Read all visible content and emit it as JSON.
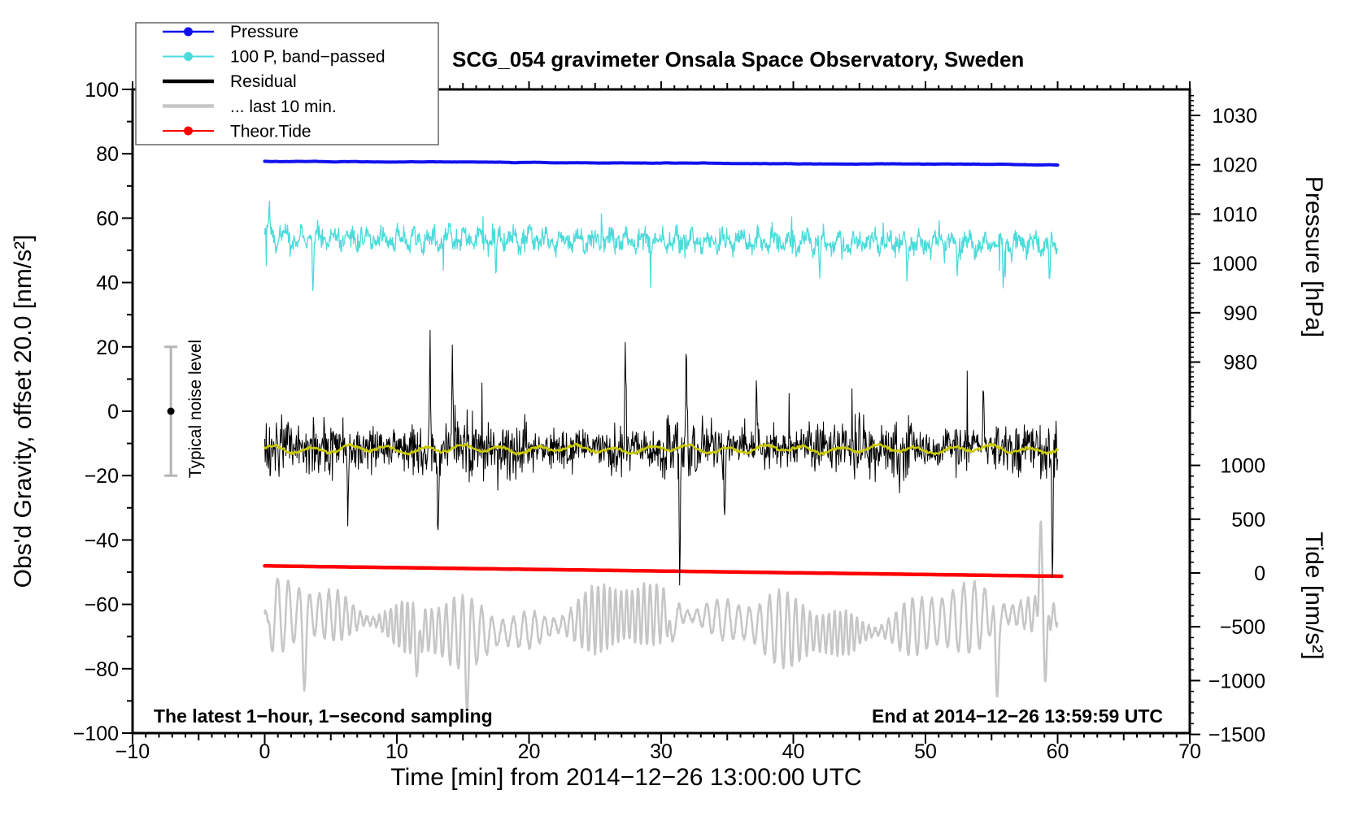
{
  "chart_data": {
    "type": "line",
    "title": "SCG_054 gravimeter Onsala Space Observatory, Sweden",
    "xlabel": "Time [min] from 2014−12−26 13:00:00 UTC",
    "ylabel_left": "Obs'd Gravity, offset 20.0 [nm/s²]",
    "ylabel_right_top": "Pressure [hPa]",
    "ylabel_right_bottom": "Tide [nm/s²]",
    "annotation_left": "The latest 1−hour, 1−second sampling",
    "annotation_right": "End at 2014−12−26 13:59:59 UTC",
    "x_axis": {
      "min": -10,
      "max": 70,
      "major_step": 10,
      "medium_step": 5,
      "minor_step": 1,
      "tick_values": [
        -10,
        0,
        10,
        20,
        30,
        40,
        50,
        60,
        70
      ],
      "tick_labels": [
        "−10",
        "0",
        "10",
        "20",
        "30",
        "40",
        "50",
        "60",
        "70"
      ]
    },
    "y_left_axis": {
      "min": -100,
      "max": 100,
      "major_step": 20,
      "minor_step": 10,
      "tick_values": [
        100,
        80,
        60,
        40,
        20,
        0,
        -20,
        -40,
        -60,
        -80,
        -100
      ],
      "tick_labels": [
        "100",
        "80",
        "60",
        "40",
        "20",
        "0",
        "−20",
        "−40",
        "−60",
        "−80",
        "−100"
      ]
    },
    "y_pressure_axis": {
      "units": "hPa",
      "minor_step": 1,
      "minor_min": 971,
      "minor_max": 1034,
      "tick_values": [
        1030,
        1020,
        1010,
        1000,
        990,
        980
      ],
      "tick_labels": [
        "1030",
        "1020",
        "1010",
        "1000",
        "990",
        "980"
      ]
    },
    "y_tide_axis": {
      "units": "nm/s²",
      "minor_step": 100,
      "minor_min": -1500,
      "minor_max": 1400,
      "tick_values": [
        1000,
        500,
        0,
        -500,
        -1000,
        -1500
      ],
      "tick_labels": [
        "1000",
        "500",
        "0",
        "−500",
        "−1000",
        "−1500"
      ]
    },
    "noise_marker": {
      "label": "Typical noise level",
      "t": -7.1,
      "center": 0,
      "half_range": 20
    },
    "legend": {
      "position": "top-left",
      "entries": [
        "Pressure",
        "100 P, band−passed",
        "Residual",
        "... last 10 min.",
        "Theor.Tide"
      ]
    },
    "series": [
      {
        "id": "pressure",
        "label": "Pressure",
        "color": "#1212ee",
        "axis": "pressure",
        "marker": true,
        "t_start": 0,
        "t_end": 60,
        "start_value": 1020.7,
        "end_value": 1020.0,
        "noise": 0.06,
        "width": 4
      },
      {
        "id": "band_passed",
        "label": "100 P, band−passed",
        "color": "#4cdbdb",
        "axis": "gravity",
        "marker": true,
        "t_start": 0,
        "t_end": 60,
        "center_start": 54,
        "center_end": 51.8,
        "sigma": 2.6,
        "width": 1.3,
        "spikes": [
          {
            "t": 0.35,
            "dv": 12
          },
          {
            "t": 3.65,
            "dv": -15
          },
          {
            "t": 17.5,
            "dv": -11
          },
          {
            "t": 25.5,
            "dv": 8
          },
          {
            "t": 42.0,
            "dv": -9
          },
          {
            "t": 48.6,
            "dv": -11
          },
          {
            "t": 52.4,
            "dv": -10
          },
          {
            "t": 55.9,
            "dv": -14
          },
          {
            "t": 59.4,
            "dv": -13
          }
        ]
      },
      {
        "id": "residual",
        "label": "Residual",
        "color": "#000000",
        "axis": "gravity",
        "marker": false,
        "t_start": 0,
        "t_end": 60,
        "center": -11.5,
        "amp": 11,
        "width": 1,
        "spikes": [
          {
            "t": 6.3,
            "dv": -18
          },
          {
            "t": 12.5,
            "dv": 34
          },
          {
            "t": 13.1,
            "dv": -24
          },
          {
            "t": 14.2,
            "dv": 28
          },
          {
            "t": 27.3,
            "dv": 30
          },
          {
            "t": 31.4,
            "dv": -36
          },
          {
            "t": 31.9,
            "dv": 26
          },
          {
            "t": 34.8,
            "dv": -20
          },
          {
            "t": 37.2,
            "dv": 22
          },
          {
            "t": 54.4,
            "dv": 18
          },
          {
            "t": 59.6,
            "dv": -36
          }
        ]
      },
      {
        "id": "last10",
        "label": "... last 10 min.",
        "color": "#c6c6c6",
        "axis": "gravity",
        "marker": false,
        "t_start": 0,
        "t_end": 60,
        "center": -66,
        "width": 2.5,
        "spikes": [
          {
            "t": 0.2,
            "dv": -11
          },
          {
            "t": 3.0,
            "dv": -17
          },
          {
            "t": 11.6,
            "dv": -13
          },
          {
            "t": 15.3,
            "dv": -13
          },
          {
            "t": 30.8,
            "dv": -12
          },
          {
            "t": 55.4,
            "dv": -26
          },
          {
            "t": 58.7,
            "dv": 26
          },
          {
            "t": 59.1,
            "dv": -18
          }
        ]
      },
      {
        "id": "tide",
        "label": "Theor.Tide",
        "color": "#ff0000",
        "axis": "tide",
        "marker": true,
        "t_start": 0,
        "t_end": 60.3,
        "start_value": 66,
        "end_value": -30,
        "width": 4.5
      },
      {
        "id": "residual_smooth",
        "label": "",
        "color": "#c9c900",
        "axis": "gravity",
        "marker": false,
        "t_start": 0,
        "t_end": 60,
        "center": -11.8,
        "width": 2.5,
        "in_legend": false
      }
    ]
  }
}
